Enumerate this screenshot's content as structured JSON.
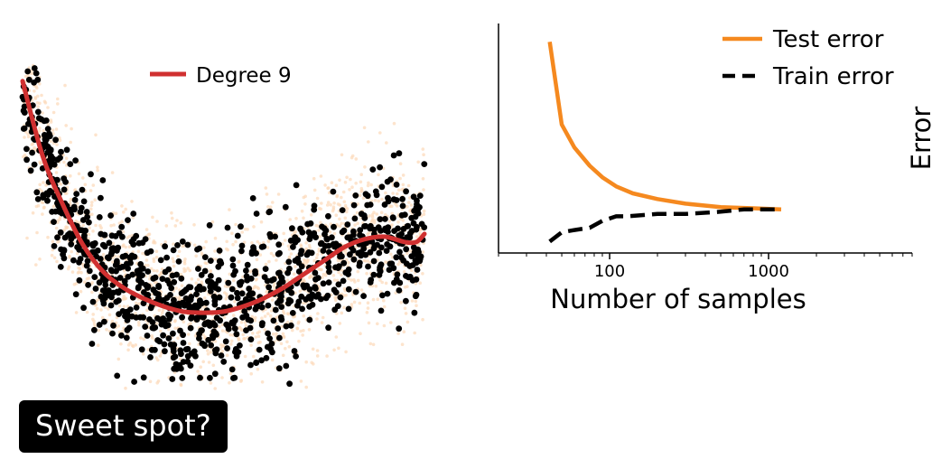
{
  "badge": {
    "label": "Sweet spot?"
  },
  "colors": {
    "fit_curve": "#d03030",
    "samples": "#000000",
    "background_noise": "#fcd9b8",
    "test_error": "#f5891f",
    "train_error": "#000000"
  },
  "chart_data": [
    {
      "type": "scatter",
      "title": "",
      "xlabel": "",
      "ylabel": "",
      "axes_visible": false,
      "legend": {
        "entries": [
          "Degree 9"
        ],
        "position": "top-center"
      },
      "xlim": [
        0,
        1
      ],
      "ylim": [
        -2.6,
        3.4
      ],
      "series": [
        {
          "name": "Degree 9",
          "kind": "line",
          "x": [
            0.0,
            0.05,
            0.1,
            0.15,
            0.2,
            0.25,
            0.3,
            0.35,
            0.4,
            0.45,
            0.5,
            0.55,
            0.6,
            0.65,
            0.7,
            0.75,
            0.8,
            0.85,
            0.9,
            0.95,
            0.98,
            1.0
          ],
          "y": [
            3.1,
            1.7,
            0.8,
            0.05,
            -0.45,
            -0.75,
            -0.95,
            -1.1,
            -1.2,
            -1.22,
            -1.2,
            -1.1,
            -0.95,
            -0.75,
            -0.5,
            -0.25,
            0.0,
            0.15,
            0.2,
            0.1,
            0.1,
            0.25
          ]
        }
      ],
      "scatter_description": "about 1000 black sample points scattered around a U-shaped trend, with a denser faint orange cloud behind"
    },
    {
      "type": "line",
      "title": "",
      "xlabel": "Number of samples",
      "ylabel": "Error",
      "x_scale": "log",
      "xlim": [
        20,
        8000
      ],
      "ylim": [
        0,
        1
      ],
      "x_tick_labels": [
        "100",
        "1000"
      ],
      "x_ticks": [
        100,
        1000
      ],
      "y_ticks": [],
      "legend": {
        "position": "top-right"
      },
      "series": [
        {
          "name": "Test error",
          "style": "solid",
          "x": [
            42,
            50,
            60,
            75,
            90,
            110,
            140,
            200,
            300,
            500,
            800,
            1200
          ],
          "y": [
            0.92,
            0.56,
            0.46,
            0.38,
            0.33,
            0.29,
            0.26,
            0.235,
            0.215,
            0.2,
            0.195,
            0.19
          ]
        },
        {
          "name": "Train error",
          "style": "dashed",
          "x": [
            42,
            50,
            60,
            75,
            90,
            110,
            130,
            200,
            300,
            500,
            700,
            1000,
            1200
          ],
          "y": [
            0.05,
            0.09,
            0.1,
            0.11,
            0.14,
            0.16,
            0.16,
            0.17,
            0.17,
            0.18,
            0.19,
            0.19,
            0.19
          ]
        }
      ]
    }
  ]
}
